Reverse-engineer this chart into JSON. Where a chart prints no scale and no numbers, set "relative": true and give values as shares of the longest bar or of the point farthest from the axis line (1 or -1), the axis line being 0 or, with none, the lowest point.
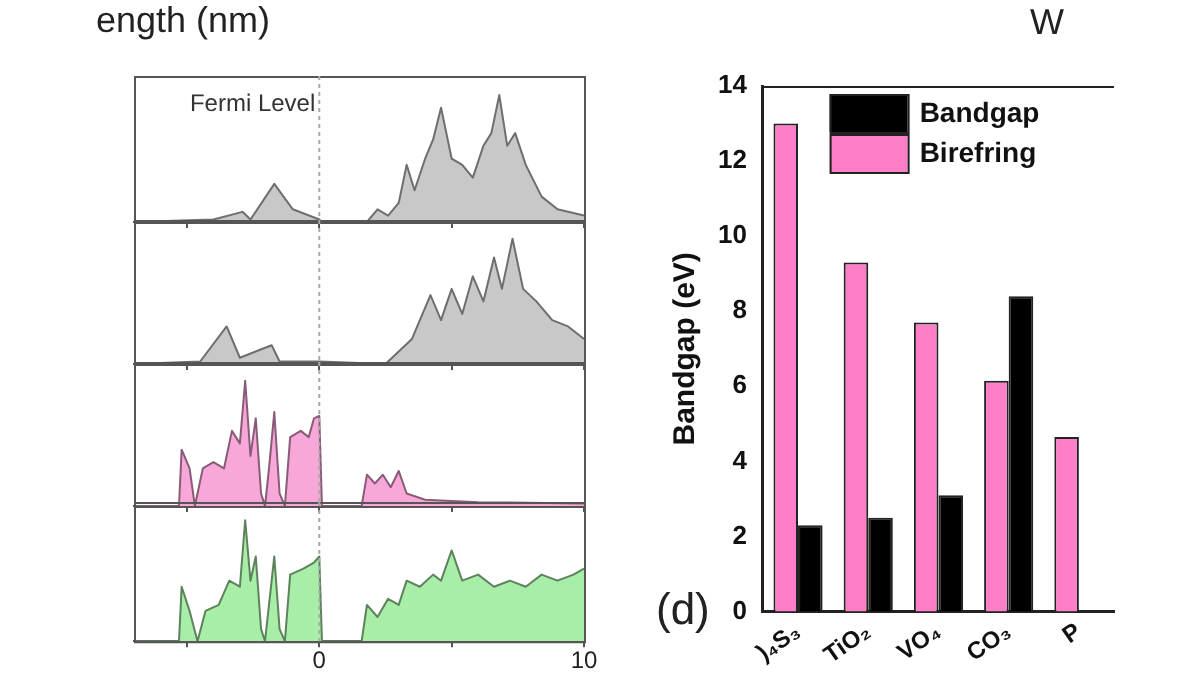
{
  "chart_data": [
    {
      "type": "area",
      "annotations": [
        "ength (nm)"
      ],
      "xlim": [
        -7,
        10
      ],
      "xticks": [
        {
          "value": -5,
          "label": null
        },
        {
          "value": 0,
          "label": null
        },
        {
          "value": 5,
          "label": null
        },
        {
          "value": 10,
          "label": null
        }
      ],
      "relative": true,
      "tick_labels": false,
      "ref_lines": [
        {
          "axis": "x",
          "value": 0,
          "label": "Fermi Level",
          "line_style": "dotted"
        }
      ],
      "series": [
        {
          "color": "#c8c8c8",
          "x": [
            -7,
            -4,
            -2.9,
            -2.6,
            -1.7,
            -1,
            0,
            0.1,
            1.8,
            2.2,
            2.6,
            3,
            3.3,
            3.6,
            4,
            4.3,
            4.6,
            5,
            5.4,
            5.8,
            6.2,
            6.5,
            6.8,
            7.1,
            7.4,
            7.8,
            8.4,
            9,
            10
          ],
          "values": [
            0,
            0.02,
            0.08,
            0.02,
            0.3,
            0.1,
            0.02,
            0,
            0,
            0.1,
            0.05,
            0.15,
            0.45,
            0.25,
            0.5,
            0.65,
            0.9,
            0.5,
            0.45,
            0.35,
            0.6,
            0.7,
            1,
            0.6,
            0.7,
            0.45,
            0.2,
            0.1,
            0.05
          ]
        }
      ]
    },
    {
      "type": "area",
      "xlim": [
        -7,
        10
      ],
      "xticks": [
        {
          "value": -5,
          "label": null
        },
        {
          "value": 0,
          "label": null
        },
        {
          "value": 5,
          "label": null
        },
        {
          "value": 10,
          "label": null
        }
      ],
      "relative": true,
      "tick_labels": false,
      "ref_lines": [
        {
          "axis": "x",
          "value": 0,
          "line_style": "dotted"
        }
      ],
      "series": [
        {
          "color": "#c8c8c8",
          "x": [
            -7,
            -4.5,
            -3.5,
            -3,
            -1.8,
            -1.5,
            0,
            2.5,
            3.5,
            4.2,
            4.6,
            5,
            5.4,
            5.8,
            6.2,
            6.6,
            6.9,
            7.3,
            7.7,
            8.2,
            8.8,
            9.4,
            10
          ],
          "values": [
            0,
            0.02,
            0.3,
            0.05,
            0.15,
            0.02,
            0.02,
            0,
            0.2,
            0.55,
            0.35,
            0.6,
            0.4,
            0.7,
            0.5,
            0.85,
            0.6,
            1,
            0.6,
            0.5,
            0.35,
            0.3,
            0.2
          ]
        }
      ]
    },
    {
      "type": "area",
      "xlim": [
        -7,
        10
      ],
      "xticks": [
        {
          "value": -5,
          "label": null
        },
        {
          "value": 0,
          "label": null
        },
        {
          "value": 5,
          "label": null
        },
        {
          "value": 10,
          "label": null
        }
      ],
      "relative": true,
      "tick_labels": false,
      "ref_lines": [
        {
          "axis": "x",
          "value": 0,
          "line_style": "dotted"
        }
      ],
      "series": [
        {
          "color": "#f7a8d8",
          "x": [
            -7,
            -5.3,
            -5.2,
            -4.9,
            -4.7,
            -4.4,
            -4,
            -3.6,
            -3.3,
            -3,
            -2.8,
            -2.6,
            -2.4,
            -2.2,
            -2.05,
            -1.9,
            -1.7,
            -1.5,
            -1.3,
            -1.1,
            -0.7,
            -0.4,
            -0.2,
            0,
            0.1,
            1.6,
            1.8,
            2.1,
            2.4,
            2.7,
            3,
            3.3,
            4,
            6,
            10
          ],
          "values": [
            0,
            0,
            0.45,
            0.3,
            0,
            0.3,
            0.35,
            0.3,
            0.6,
            0.5,
            1,
            0.4,
            0.7,
            0.1,
            0,
            0.3,
            0.75,
            0.1,
            0,
            0.55,
            0.6,
            0.55,
            0.7,
            0.72,
            0,
            0,
            0.25,
            0.18,
            0.25,
            0.15,
            0.28,
            0.1,
            0.05,
            0.03,
            0.02
          ]
        }
      ]
    },
    {
      "type": "area",
      "xlim": [
        -7,
        10
      ],
      "xticks": [
        {
          "value": -5,
          "label": null
        },
        0,
        {
          "value": 5,
          "label": null
        },
        10
      ],
      "relative": true,
      "tick_labels": "x",
      "ref_lines": [
        {
          "axis": "x",
          "value": 0,
          "line_style": "dotted"
        }
      ],
      "series": [
        {
          "color": "#a8eea8",
          "x": [
            -7,
            -5.3,
            -5.2,
            -4.9,
            -4.6,
            -4.3,
            -3.8,
            -3.4,
            -3,
            -2.8,
            -2.6,
            -2.4,
            -2.2,
            -2.05,
            -1.9,
            -1.7,
            -1.5,
            -1.3,
            -1.1,
            -0.6,
            -0.2,
            0,
            0.1,
            1.6,
            1.8,
            2.2,
            2.6,
            3,
            3.3,
            3.8,
            4.3,
            4.6,
            5,
            5.4,
            6,
            6.6,
            7.2,
            7.8,
            8.4,
            9,
            9.6,
            10
          ],
          "values": [
            0,
            0,
            0.45,
            0.25,
            0,
            0.25,
            0.3,
            0.5,
            0.45,
            1,
            0.5,
            0.7,
            0.1,
            0,
            0.3,
            0.7,
            0.1,
            0,
            0.55,
            0.6,
            0.65,
            0.7,
            0,
            0,
            0.3,
            0.2,
            0.35,
            0.3,
            0.5,
            0.45,
            0.55,
            0.5,
            0.75,
            0.5,
            0.55,
            0.45,
            0.5,
            0.45,
            0.55,
            0.5,
            0.55,
            0.6
          ]
        }
      ]
    },
    {
      "type": "bar",
      "ylabel": "Bandgap (eV)",
      "annotations": [
        "(d)",
        "W"
      ],
      "categories": [
        ")₄S₃",
        "TiO₂",
        "VO₄",
        "CO₃",
        "P"
      ],
      "ylim": [
        0,
        14
      ],
      "yticks": [
        0,
        2,
        4,
        6,
        8,
        10,
        12,
        14
      ],
      "legend": "top",
      "grid": false,
      "series": [
        {
          "name": "Bandgap",
          "color": "#000000",
          "values": [
            2.3,
            2.5,
            3.1,
            8.4,
            null
          ]
        },
        {
          "name": "Birefring",
          "color": "#ff7ec8",
          "values": [
            13,
            9.3,
            7.7,
            6.15,
            4.65
          ]
        }
      ]
    }
  ]
}
